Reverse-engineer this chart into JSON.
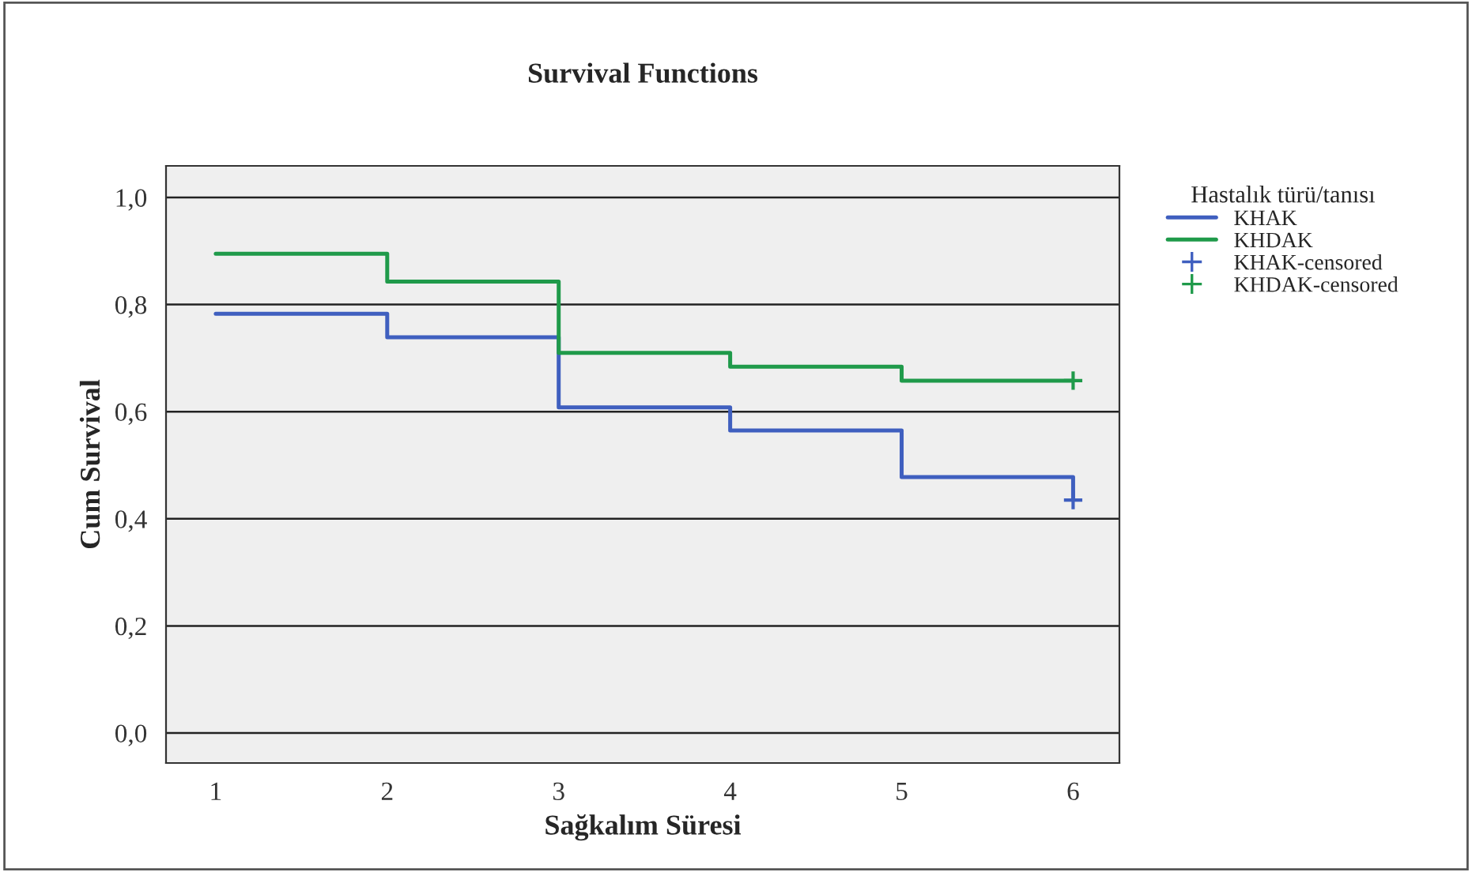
{
  "chart_data": {
    "type": "step",
    "title": "Survival Functions",
    "xlabel": "Sağkalım Süresi",
    "ylabel": "Cum Survival",
    "legend_title": "Hastalık türü/tanısı",
    "series": [
      {
        "name": "KHAK",
        "color": "#3f5fbf",
        "x": [
          1,
          2,
          3,
          4,
          5,
          6
        ],
        "values": [
          0.783,
          0.739,
          0.608,
          0.565,
          0.478,
          0.435
        ]
      },
      {
        "name": "KHDAK",
        "color": "#1f9a4a",
        "x": [
          1,
          2,
          3,
          4,
          5,
          6
        ],
        "values": [
          0.895,
          0.843,
          0.71,
          0.684,
          0.658,
          0.658
        ]
      },
      {
        "name": "KHAK-censored",
        "type": "scatter",
        "marker": "cross",
        "color": "#3f5fbf",
        "x": [
          6
        ],
        "values": [
          0.435
        ]
      },
      {
        "name": "KHDAK-censored",
        "type": "scatter",
        "marker": "cross",
        "color": "#1f9a4a",
        "x": [
          6
        ],
        "values": [
          0.658
        ]
      }
    ],
    "xlim": [
      0.71,
      6.27
    ],
    "ylim": [
      -0.056,
      1.059
    ],
    "xticks": [
      1,
      2,
      3,
      4,
      5,
      6
    ],
    "yticks": [
      {
        "value": 0.0,
        "label": "0,0"
      },
      {
        "value": 0.2,
        "label": "0,2"
      },
      {
        "value": 0.4,
        "label": "0,4"
      },
      {
        "value": 0.6,
        "label": "0,6"
      },
      {
        "value": 0.8,
        "label": "0,8"
      },
      {
        "value": 1.0,
        "label": "1,0"
      }
    ],
    "grid": "y",
    "legend": "right"
  }
}
